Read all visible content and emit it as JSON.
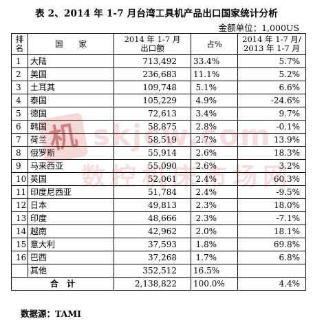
{
  "title": "表 2、2014 年 1-7 月台湾工具机产品出口国家统计分析",
  "unit": "金额单位：1,000US",
  "headers": {
    "rank_line1": "排",
    "rank_line2": "名",
    "country": "国　　家",
    "export_line1": "2014 年 1-7 月",
    "export_line2": "出口额",
    "share": "占%",
    "change_line1": "2014 年 1-7 月/",
    "change_line2": "2013 年 1-7 月"
  },
  "rows": [
    {
      "rank": "1",
      "country": "大陆",
      "value": "713,492",
      "share": "33.4%",
      "change": "5.7%"
    },
    {
      "rank": "2",
      "country": "美国",
      "value": "236,683",
      "share": "11.1%",
      "change": "5.2%"
    },
    {
      "rank": "3",
      "country": "土耳其",
      "value": "109,748",
      "share": "5.1%",
      "change": "6.6%"
    },
    {
      "rank": "4",
      "country": "泰国",
      "value": "105,229",
      "share": "4.9%",
      "change": "-24.6%"
    },
    {
      "rank": "5",
      "country": "德国",
      "value": "72,613",
      "share": "3.4%",
      "change": "9.7%"
    },
    {
      "rank": "6",
      "country": "韩国",
      "value": "58,875",
      "share": "2.8%",
      "change": "-0.1%"
    },
    {
      "rank": "7",
      "country": "荷兰",
      "value": "58,519",
      "share": "2.7%",
      "change": "13.9%"
    },
    {
      "rank": "8",
      "country": "俄罗斯",
      "value": "55,914",
      "share": "2.6%",
      "change": "18.3%"
    },
    {
      "rank": "9",
      "country": "马来西亚",
      "value": "55,090",
      "share": "2.6%",
      "change": "3.2%"
    },
    {
      "rank": "10",
      "country": "英国",
      "value": "52,061",
      "share": "2.4%",
      "change": "60.3%"
    },
    {
      "rank": "11",
      "country": "印度尼西亚",
      "value": "51,784",
      "share": "2.4%",
      "change": "-9.5%"
    },
    {
      "rank": "12",
      "country": "日本",
      "value": "49,813",
      "share": "2.3%",
      "change": "18.0%"
    },
    {
      "rank": "13",
      "country": "印度",
      "value": "48,666",
      "share": "2.3%",
      "change": "-7.1%"
    },
    {
      "rank": "14",
      "country": "越南",
      "value": "42,962",
      "share": "2.0%",
      "change": "18.1%"
    },
    {
      "rank": "15",
      "country": "意大利",
      "value": "37,593",
      "share": "1.8%",
      "change": "69.8%"
    },
    {
      "rank": "16",
      "country": "巴西",
      "value": "37,268",
      "share": "1.7%",
      "change": "6.8%"
    }
  ],
  "other": {
    "country": "其他",
    "value": "352,512",
    "share": "16.5%",
    "change": ""
  },
  "total": {
    "label": "合　计",
    "value": "2,138,822",
    "share": "100.0%",
    "change": "4.4%"
  },
  "source": "数据源：TAMI",
  "watermark": {
    "logo_char": "机",
    "url": "skjcw.com",
    "cn": "数控机床市场网"
  }
}
